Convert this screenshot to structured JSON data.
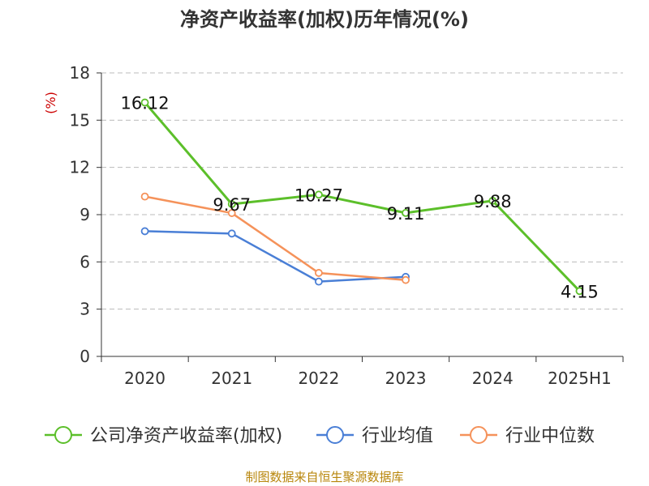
{
  "chart_data": {
    "type": "line",
    "title": "净资产收益率(加权)历年情况(%)",
    "ylabel": "(%)",
    "categories": [
      "2020",
      "2021",
      "2022",
      "2023",
      "2024",
      "2025H1"
    ],
    "ylim": [
      0,
      18
    ],
    "yticks": [
      0,
      3,
      6,
      9,
      12,
      15,
      18
    ],
    "grid": true,
    "legend_position": "bottom",
    "series": [
      {
        "name": "公司净资产收益率(加权)",
        "color": "#5cbf2a",
        "values": [
          16.12,
          9.67,
          10.27,
          9.11,
          9.88,
          4.15
        ],
        "labels": [
          "16.12",
          "9.67",
          "10.27",
          "9.11",
          "9.88",
          "4.15"
        ]
      },
      {
        "name": "行业均值",
        "color": "#4a7fd6",
        "values": [
          7.95,
          7.8,
          4.75,
          5.05,
          null,
          null
        ]
      },
      {
        "name": "行业中位数",
        "color": "#f5925a",
        "values": [
          10.15,
          9.1,
          5.3,
          4.85,
          null,
          null
        ]
      }
    ]
  },
  "source": "制图数据来自恒生聚源数据库"
}
